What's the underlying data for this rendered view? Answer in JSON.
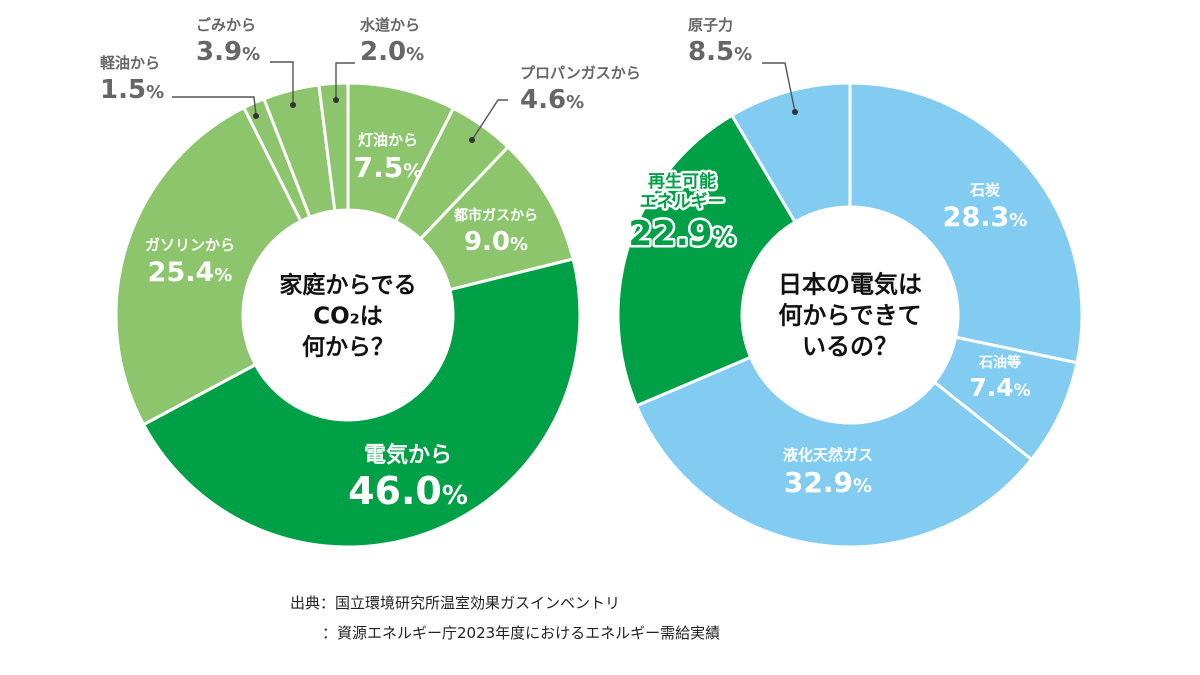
{
  "chart_data": [
    {
      "type": "pie",
      "variant": "donut",
      "title": [
        "家庭からでる",
        "CO₂は",
        "何から？"
      ],
      "start_angle_deg": 0,
      "slices": [
        {
          "label": "灯油から",
          "value": 7.5,
          "color": "#8CC56C",
          "text_color": "#ffffff",
          "label_placement": "inside"
        },
        {
          "label": "プロパンガスから",
          "value": 4.6,
          "color": "#8CC56C",
          "text_color": "#666666",
          "label_placement": "outside"
        },
        {
          "label": "都市ガスから",
          "value": 9.0,
          "color": "#8CC56C",
          "text_color": "#ffffff",
          "label_placement": "inside"
        },
        {
          "label": "電気から",
          "value": 46.0,
          "color": "#00A046",
          "text_color": "#ffffff",
          "label_placement": "inside"
        },
        {
          "label": "ガソリンから",
          "value": 25.4,
          "color": "#8CC56C",
          "text_color": "#ffffff",
          "label_placement": "inside"
        },
        {
          "label": "軽油から",
          "value": 1.5,
          "color": "#8CC56C",
          "text_color": "#666666",
          "label_placement": "outside"
        },
        {
          "label": "ごみから",
          "value": 3.9,
          "color": "#8CC56C",
          "text_color": "#666666",
          "label_placement": "outside"
        },
        {
          "label": "水道から",
          "value": 2.0,
          "color": "#8CC56C",
          "text_color": "#666666",
          "label_placement": "outside"
        }
      ]
    },
    {
      "type": "pie",
      "variant": "donut",
      "title": [
        "日本の電気は",
        "何からできて",
        "いるの？"
      ],
      "start_angle_deg": 0,
      "slices": [
        {
          "label": "石炭",
          "value": 28.3,
          "color": "#82CCF1",
          "text_color": "#ffffff",
          "label_placement": "inside"
        },
        {
          "label": "石油等",
          "value": 7.4,
          "color": "#82CCF1",
          "text_color": "#ffffff",
          "label_placement": "inside"
        },
        {
          "label": "液化天然ガス",
          "value": 32.9,
          "color": "#82CCF1",
          "text_color": "#ffffff",
          "label_placement": "inside"
        },
        {
          "label": "再生可能\nエネルギー",
          "value": 22.9,
          "color": "#00A046",
          "text_color": "#00A046",
          "label_placement": "inside-outlined"
        },
        {
          "label": "原子力",
          "value": 8.5,
          "color": "#82CCF1",
          "text_color": "#666666",
          "label_placement": "outside"
        }
      ]
    }
  ],
  "source": {
    "line1": "出典：国立環境研究所温室効果ガスインベントリ",
    "line2": "：資源エネルギー庁2023年度におけるエネルギー需給実績"
  }
}
